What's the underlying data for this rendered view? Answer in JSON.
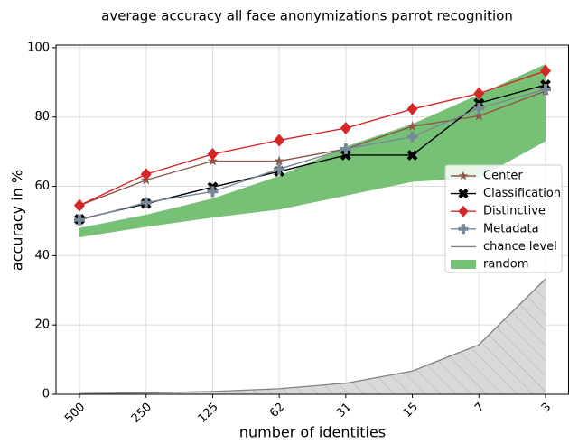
{
  "chart_data": {
    "type": "line",
    "title": "average accuracy all face anonymizations parrot recognition",
    "x_label": "number of identities",
    "y_label": "accuracy in %",
    "categories": [
      "500",
      "250",
      "125",
      "62",
      "31",
      "15",
      "7",
      "3"
    ],
    "series": [
      {
        "name": "Center",
        "color": "#8c564b",
        "marker": "star",
        "values": [
          54.5,
          61.8,
          67.3,
          67.3,
          70.8,
          77.3,
          80.3,
          87.5
        ]
      },
      {
        "name": "Classification",
        "color": "#000000",
        "marker": "x",
        "values": [
          50.5,
          55.0,
          59.8,
          64.3,
          69.0,
          69.0,
          84.0,
          89.3
        ]
      },
      {
        "name": "Distinctive",
        "color": "#d62728",
        "marker": "diamond",
        "values": [
          54.5,
          63.5,
          69.3,
          73.3,
          76.8,
          82.3,
          86.8,
          93.3
        ]
      },
      {
        "name": "Metadata",
        "color": "#778899",
        "marker": "plus",
        "values": [
          50.3,
          55.3,
          58.5,
          65.0,
          70.8,
          74.3,
          82.5,
          88.0
        ]
      }
    ],
    "chance": {
      "name": "chance level",
      "color": "#808080",
      "fill": "#d9d9d9",
      "values": [
        0.2,
        0.4,
        0.8,
        1.6,
        3.2,
        6.7,
        14.3,
        33.3
      ]
    },
    "band": {
      "name": "random",
      "color": "#77c177",
      "lower": [
        45.3,
        48.3,
        51.0,
        53.3,
        57.3,
        61.3,
        62.5,
        73.0
      ],
      "upper": [
        48.0,
        51.8,
        56.5,
        63.0,
        71.5,
        78.0,
        86.5,
        95.3
      ]
    },
    "ylim": [
      0,
      100.5
    ],
    "yticks": [
      0,
      20,
      40,
      60,
      80,
      100
    ],
    "grid": true,
    "legend": "center right"
  }
}
